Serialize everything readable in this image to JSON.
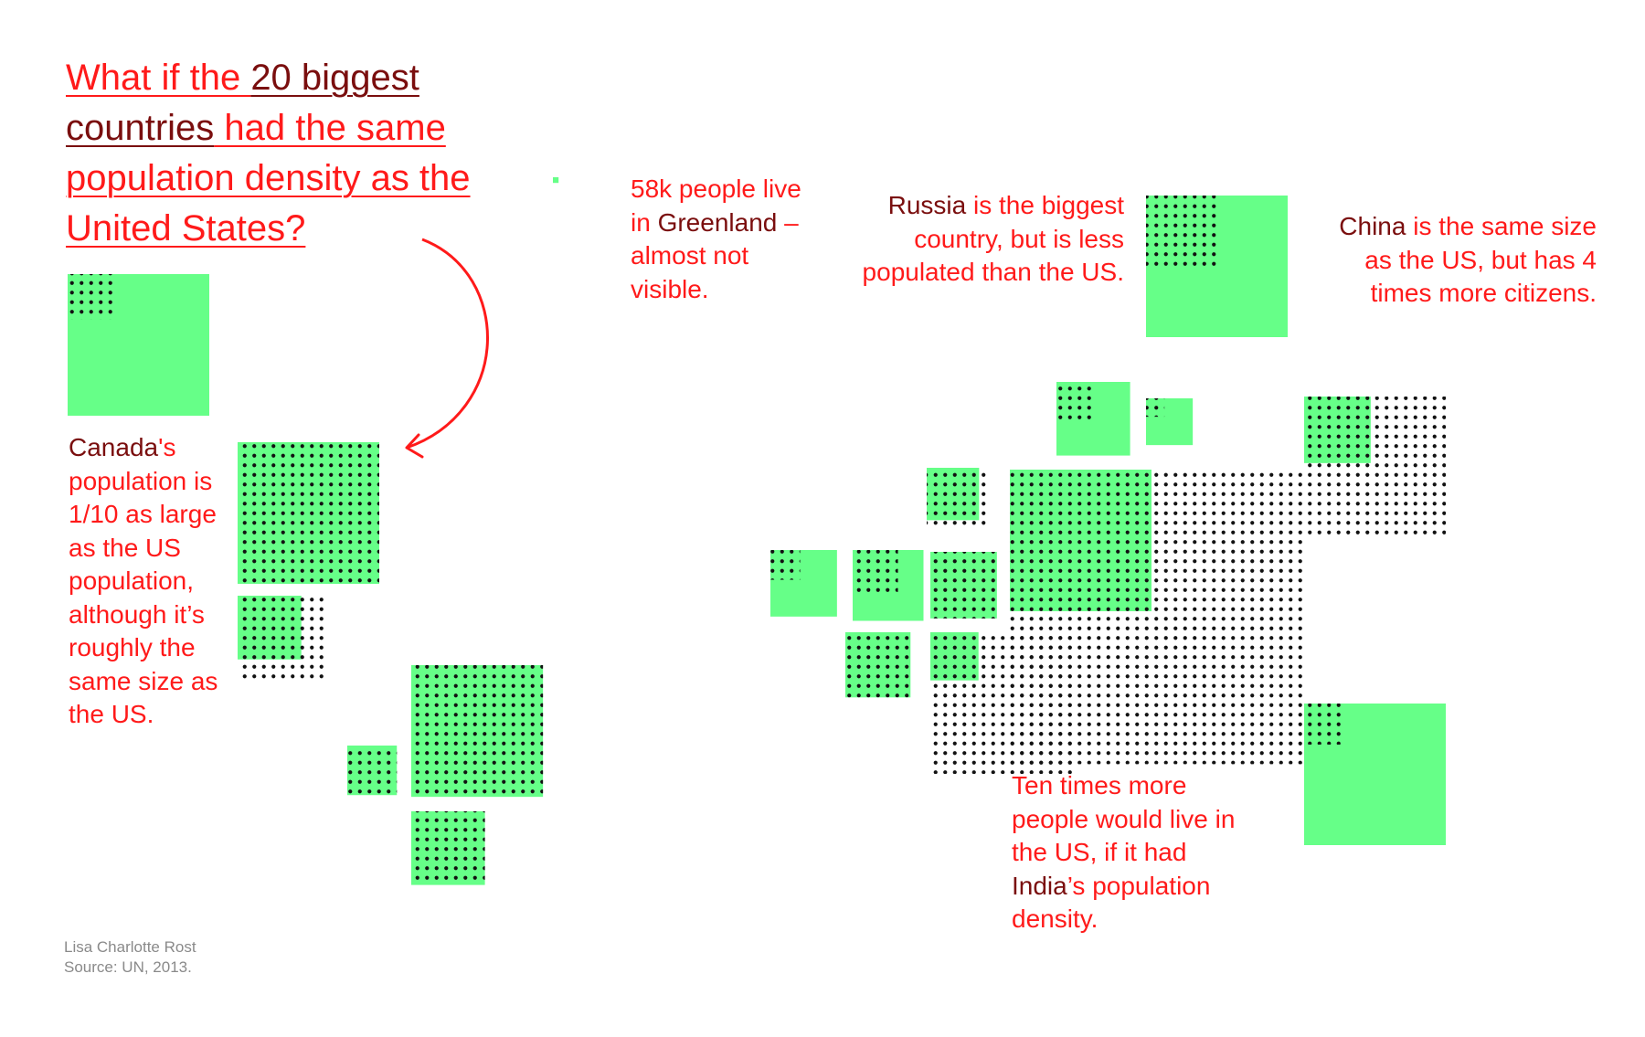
{
  "colors": {
    "accent_red": "#ff1a1a",
    "emphasis_dark_red": "#7a0e0e",
    "land_green": "#66ff88",
    "dots": "#111111",
    "credit_gray": "#8a8a8a"
  },
  "title": {
    "part1": "What if the ",
    "part2": "20 biggest countries",
    "part3": " had the same population density as the United States?"
  },
  "annotations": {
    "canada": {
      "country": "Canada",
      "text": "'s population is 1/10 as large as the US population, although it’s roughly the same size as the US."
    },
    "greenland": {
      "text1": "58k people live in ",
      "country": "Greenland",
      "text2": " – almost not visible."
    },
    "russia": {
      "country": "Russia",
      "text": " is the biggest country, but is less populated than the US."
    },
    "china": {
      "country": "China",
      "text": " is the same size as the US, but has 4 times more citizens."
    },
    "india": {
      "text1": "Ten times more people would live in the US, if it had ",
      "country": "India",
      "text2": "’s population density."
    }
  },
  "credit": {
    "author": "Lisa Charlotte Rost",
    "source": "Source: UN, 2013."
  },
  "chart_data": {
    "type": "other",
    "title": "",
    "encoding": {
      "green_square": "country area",
      "dotted_square": "population at US population density"
    },
    "pairs": [
      {
        "area": 1.0,
        "population": 0.32
      },
      {
        "area": 1.0,
        "population": 1.0
      },
      {
        "area": 0.45,
        "population": 0.62
      },
      {
        "area": 0.93,
        "population": 0.93
      },
      {
        "area": 0.35,
        "population": 0.35
      },
      {
        "area": 0.52,
        "population": 0.52
      },
      {
        "area": 0.04,
        "population": 0.0
      },
      {
        "area": 1.0,
        "population": 0.5
      },
      {
        "area": 0.52,
        "population": 0.28
      },
      {
        "area": 0.33,
        "population": 0.13
      },
      {
        "area": 0.37,
        "population": 0.43
      },
      {
        "area": 0.49,
        "population": 0.21
      },
      {
        "area": 0.47,
        "population": 0.21
      },
      {
        "area": 0.5,
        "population": 0.32
      },
      {
        "area": 0.47,
        "population": 0.47
      },
      {
        "area": 0.46,
        "population": 0.46
      },
      {
        "area": 0.34,
        "population": 1.0
      },
      {
        "area": 1.0,
        "population": 2.08
      },
      {
        "area": 0.47,
        "population": 1.0
      },
      {
        "area": 1.0,
        "population": 0.29
      }
    ]
  }
}
